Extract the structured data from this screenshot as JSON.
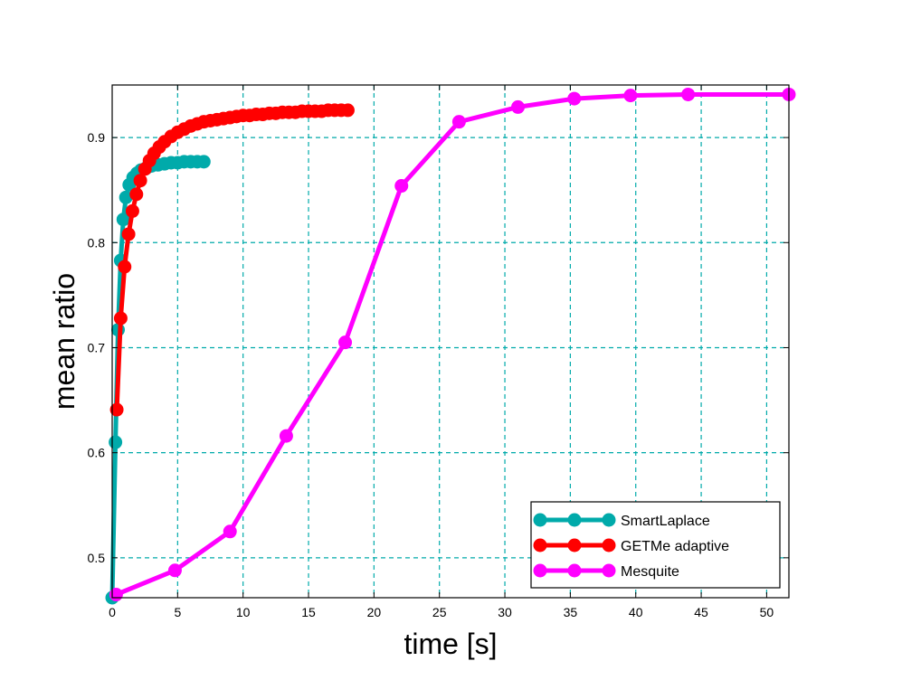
{
  "chart_data": {
    "type": "line",
    "title": "",
    "xlabel": "time [s]",
    "ylabel": "mean ratio",
    "xlim": [
      0,
      51.7
    ],
    "ylim": [
      0.462,
      0.95
    ],
    "xticks": [
      0,
      5,
      10,
      15,
      20,
      25,
      30,
      35,
      40,
      45,
      50
    ],
    "yticks": [
      0.5,
      0.6,
      0.7,
      0.8,
      0.9
    ],
    "xtick_labels": [
      "0",
      "5",
      "10",
      "15",
      "20",
      "25",
      "30",
      "35",
      "40",
      "45",
      "50"
    ],
    "ytick_labels": [
      "0.5",
      "0.6",
      "0.7",
      "0.8",
      "0.9"
    ],
    "grid": true,
    "legend_position": "bottom-right",
    "series": [
      {
        "name": "SmartLaplace",
        "color": "#00aaaa",
        "x": [
          0.0,
          0.25,
          0.45,
          0.65,
          0.85,
          1.05,
          1.3,
          1.6,
          1.9,
          2.2,
          2.6,
          3.0,
          3.5,
          4.0,
          4.5,
          5.0,
          5.5,
          6.0,
          6.5,
          7.0
        ],
        "y": [
          0.462,
          0.61,
          0.717,
          0.783,
          0.822,
          0.843,
          0.855,
          0.862,
          0.866,
          0.869,
          0.871,
          0.873,
          0.874,
          0.875,
          0.876,
          0.876,
          0.877,
          0.877,
          0.877,
          0.877
        ]
      },
      {
        "name": "GETMe adaptive",
        "color": "#ff0000",
        "x": [
          0.35,
          0.65,
          0.95,
          1.25,
          1.55,
          1.85,
          2.15,
          2.5,
          2.85,
          3.2,
          3.6,
          4.0,
          4.5,
          5.0,
          5.5,
          6.0,
          6.5,
          7.0,
          7.5,
          8.0,
          8.5,
          9.0,
          9.5,
          10.0,
          10.5,
          11.0,
          11.5,
          12.0,
          12.5,
          13.0,
          13.5,
          14.0,
          14.5,
          15.0,
          15.5,
          16.0,
          16.5,
          17.0,
          17.5,
          18.0
        ],
        "y": [
          0.641,
          0.728,
          0.777,
          0.808,
          0.83,
          0.846,
          0.859,
          0.87,
          0.878,
          0.885,
          0.891,
          0.896,
          0.901,
          0.905,
          0.908,
          0.911,
          0.913,
          0.915,
          0.916,
          0.917,
          0.918,
          0.919,
          0.92,
          0.921,
          0.921,
          0.922,
          0.922,
          0.923,
          0.923,
          0.924,
          0.924,
          0.924,
          0.925,
          0.925,
          0.925,
          0.925,
          0.926,
          0.926,
          0.926,
          0.926
        ]
      },
      {
        "name": "Mesquite",
        "color": "#ff00ff",
        "x": [
          0.3,
          4.8,
          9.0,
          13.3,
          17.8,
          22.1,
          26.5,
          31.0,
          35.3,
          39.6,
          44.0,
          51.7
        ],
        "y": [
          0.465,
          0.488,
          0.525,
          0.616,
          0.705,
          0.854,
          0.915,
          0.929,
          0.937,
          0.94,
          0.941,
          0.941
        ]
      }
    ]
  }
}
